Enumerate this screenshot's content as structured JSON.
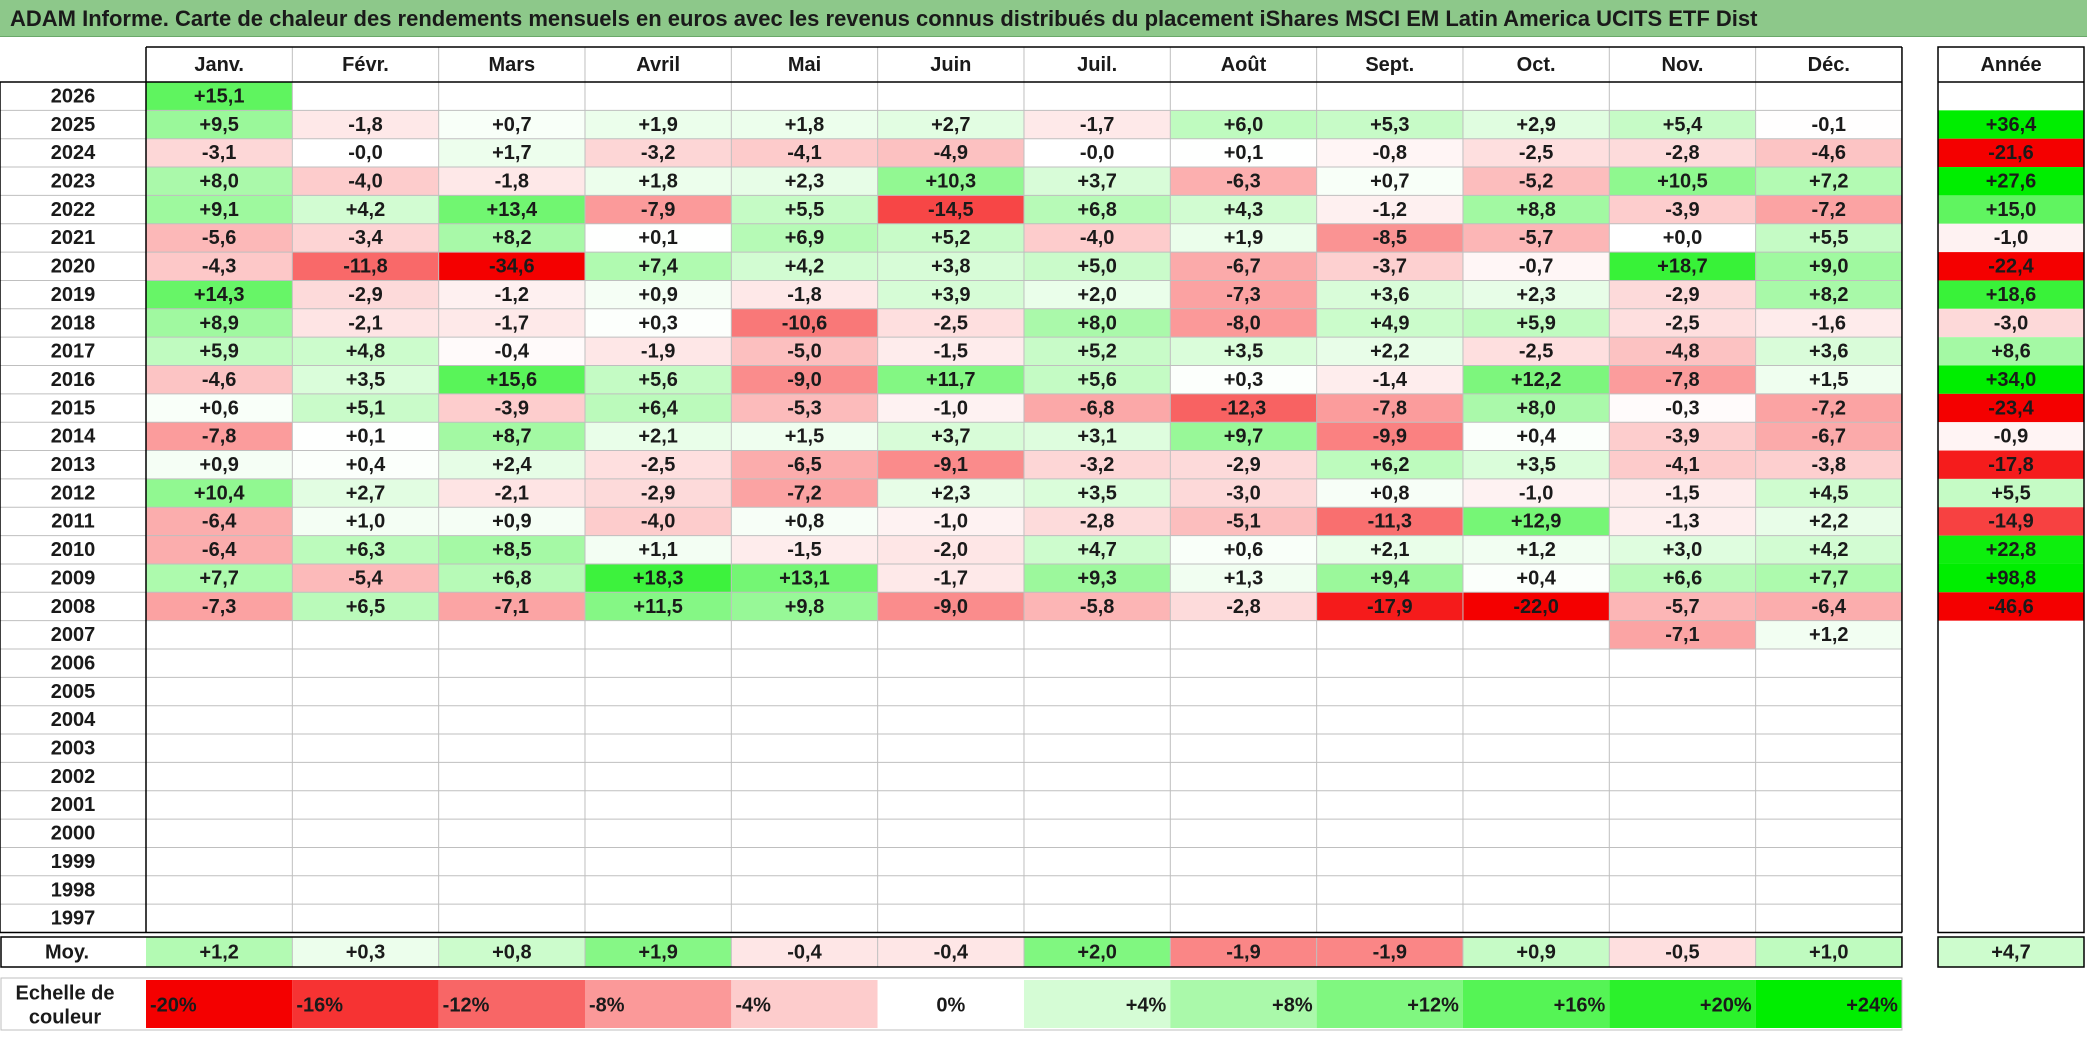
{
  "title": "ADAM Informe. Carte de chaleur des rendements mensuels en euros avec les revenus connus distribués du placement iShares MSCI EM Latin America UCITS ETF Dist",
  "chart_data": {
    "type": "heatmap",
    "months": [
      "Janv.",
      "Févr.",
      "Mars",
      "Avril",
      "Mai",
      "Juin",
      "Juil.",
      "Août",
      "Sept.",
      "Oct.",
      "Nov.",
      "Déc."
    ],
    "year_header": "Année",
    "rows": [
      {
        "year": "2026",
        "months": [
          "+15,1",
          "",
          "",
          "",
          "",
          "",
          "",
          "",
          "",
          "",
          "",
          ""
        ],
        "annual": ""
      },
      {
        "year": "2025",
        "months": [
          "+9,5",
          "-1,8",
          "+0,7",
          "+1,9",
          "+1,8",
          "+2,7",
          "-1,7",
          "+6,0",
          "+5,3",
          "+2,9",
          "+5,4",
          "-0,1"
        ],
        "annual": "+36,4"
      },
      {
        "year": "2024",
        "months": [
          "-3,1",
          "-0,0",
          "+1,7",
          "-3,2",
          "-4,1",
          "-4,9",
          "-0,0",
          "+0,1",
          "-0,8",
          "-2,5",
          "-2,8",
          "-4,6"
        ],
        "annual": "-21,6"
      },
      {
        "year": "2023",
        "months": [
          "+8,0",
          "-4,0",
          "-1,8",
          "+1,8",
          "+2,3",
          "+10,3",
          "+3,7",
          "-6,3",
          "+0,7",
          "-5,2",
          "+10,5",
          "+7,2"
        ],
        "annual": "+27,6"
      },
      {
        "year": "2022",
        "months": [
          "+9,1",
          "+4,2",
          "+13,4",
          "-7,9",
          "+5,5",
          "-14,5",
          "+6,8",
          "+4,3",
          "-1,2",
          "+8,8",
          "-3,9",
          "-7,2"
        ],
        "annual": "+15,0"
      },
      {
        "year": "2021",
        "months": [
          "-5,6",
          "-3,4",
          "+8,2",
          "+0,1",
          "+6,9",
          "+5,2",
          "-4,0",
          "+1,9",
          "-8,5",
          "-5,7",
          "+0,0",
          "+5,5"
        ],
        "annual": "-1,0"
      },
      {
        "year": "2020",
        "months": [
          "-4,3",
          "-11,8",
          "-34,6",
          "+7,4",
          "+4,2",
          "+3,8",
          "+5,0",
          "-6,7",
          "-3,7",
          "-0,7",
          "+18,7",
          "+9,0"
        ],
        "annual": "-22,4"
      },
      {
        "year": "2019",
        "months": [
          "+14,3",
          "-2,9",
          "-1,2",
          "+0,9",
          "-1,8",
          "+3,9",
          "+2,0",
          "-7,3",
          "+3,6",
          "+2,3",
          "-2,9",
          "+8,2"
        ],
        "annual": "+18,6"
      },
      {
        "year": "2018",
        "months": [
          "+8,9",
          "-2,1",
          "-1,7",
          "+0,3",
          "-10,6",
          "-2,5",
          "+8,0",
          "-8,0",
          "+4,9",
          "+5,9",
          "-2,5",
          "-1,6"
        ],
        "annual": "-3,0"
      },
      {
        "year": "2017",
        "months": [
          "+5,9",
          "+4,8",
          "-0,4",
          "-1,9",
          "-5,0",
          "-1,5",
          "+5,2",
          "+3,5",
          "+2,2",
          "-2,5",
          "-4,8",
          "+3,6"
        ],
        "annual": "+8,6"
      },
      {
        "year": "2016",
        "months": [
          "-4,6",
          "+3,5",
          "+15,6",
          "+5,6",
          "-9,0",
          "+11,7",
          "+5,6",
          "+0,3",
          "-1,4",
          "+12,2",
          "-7,8",
          "+1,5"
        ],
        "annual": "+34,0"
      },
      {
        "year": "2015",
        "months": [
          "+0,6",
          "+5,1",
          "-3,9",
          "+6,4",
          "-5,3",
          "-1,0",
          "-6,8",
          "-12,3",
          "-7,8",
          "+8,0",
          "-0,3",
          "-7,2"
        ],
        "annual": "-23,4"
      },
      {
        "year": "2014",
        "months": [
          "-7,8",
          "+0,1",
          "+8,7",
          "+2,1",
          "+1,5",
          "+3,7",
          "+3,1",
          "+9,7",
          "-9,9",
          "+0,4",
          "-3,9",
          "-6,7"
        ],
        "annual": "-0,9"
      },
      {
        "year": "2013",
        "months": [
          "+0,9",
          "+0,4",
          "+2,4",
          "-2,5",
          "-6,5",
          "-9,1",
          "-3,2",
          "-2,9",
          "+6,2",
          "+3,5",
          "-4,1",
          "-3,8"
        ],
        "annual": "-17,8"
      },
      {
        "year": "2012",
        "months": [
          "+10,4",
          "+2,7",
          "-2,1",
          "-2,9",
          "-7,2",
          "+2,3",
          "+3,5",
          "-3,0",
          "+0,8",
          "-1,0",
          "-1,5",
          "+4,5"
        ],
        "annual": "+5,5"
      },
      {
        "year": "2011",
        "months": [
          "-6,4",
          "+1,0",
          "+0,9",
          "-4,0",
          "+0,8",
          "-1,0",
          "-2,8",
          "-5,1",
          "-11,3",
          "+12,9",
          "-1,3",
          "+2,2"
        ],
        "annual": "-14,9"
      },
      {
        "year": "2010",
        "months": [
          "-6,4",
          "+6,3",
          "+8,5",
          "+1,1",
          "-1,5",
          "-2,0",
          "+4,7",
          "+0,6",
          "+2,1",
          "+1,2",
          "+3,0",
          "+4,2"
        ],
        "annual": "+22,8"
      },
      {
        "year": "2009",
        "months": [
          "+7,7",
          "-5,4",
          "+6,8",
          "+18,3",
          "+13,1",
          "-1,7",
          "+9,3",
          "+1,3",
          "+9,4",
          "+0,4",
          "+6,6",
          "+7,7"
        ],
        "annual": "+98,8"
      },
      {
        "year": "2008",
        "months": [
          "-7,3",
          "+6,5",
          "-7,1",
          "+11,5",
          "+9,8",
          "-9,0",
          "-5,8",
          "-2,8",
          "-17,9",
          "-22,0",
          "-5,7",
          "-6,4"
        ],
        "annual": "-46,6"
      },
      {
        "year": "2007",
        "months": [
          "",
          "",
          "",
          "",
          "",
          "",
          "",
          "",
          "",
          "",
          "-7,1",
          "+1,2"
        ],
        "annual": ""
      },
      {
        "year": "2006",
        "months": [
          "",
          "",
          "",
          "",
          "",
          "",
          "",
          "",
          "",
          "",
          "",
          ""
        ],
        "annual": ""
      },
      {
        "year": "2005",
        "months": [
          "",
          "",
          "",
          "",
          "",
          "",
          "",
          "",
          "",
          "",
          "",
          ""
        ],
        "annual": ""
      },
      {
        "year": "2004",
        "months": [
          "",
          "",
          "",
          "",
          "",
          "",
          "",
          "",
          "",
          "",
          "",
          ""
        ],
        "annual": ""
      },
      {
        "year": "2003",
        "months": [
          "",
          "",
          "",
          "",
          "",
          "",
          "",
          "",
          "",
          "",
          "",
          ""
        ],
        "annual": ""
      },
      {
        "year": "2002",
        "months": [
          "",
          "",
          "",
          "",
          "",
          "",
          "",
          "",
          "",
          "",
          "",
          ""
        ],
        "annual": ""
      },
      {
        "year": "2001",
        "months": [
          "",
          "",
          "",
          "",
          "",
          "",
          "",
          "",
          "",
          "",
          "",
          ""
        ],
        "annual": ""
      },
      {
        "year": "2000",
        "months": [
          "",
          "",
          "",
          "",
          "",
          "",
          "",
          "",
          "",
          "",
          "",
          ""
        ],
        "annual": ""
      },
      {
        "year": "1999",
        "months": [
          "",
          "",
          "",
          "",
          "",
          "",
          "",
          "",
          "",
          "",
          "",
          ""
        ],
        "annual": ""
      },
      {
        "year": "1998",
        "months": [
          "",
          "",
          "",
          "",
          "",
          "",
          "",
          "",
          "",
          "",
          "",
          ""
        ],
        "annual": ""
      },
      {
        "year": "1997",
        "months": [
          "",
          "",
          "",
          "",
          "",
          "",
          "",
          "",
          "",
          "",
          "",
          ""
        ],
        "annual": ""
      }
    ],
    "average": {
      "label": "Moy.",
      "months": [
        "+1,2",
        "+0,3",
        "+0,8",
        "+1,9",
        "-0,4",
        "-0,4",
        "+2,0",
        "-1,9",
        "-1,9",
        "+0,9",
        "-0,5",
        "+1,0"
      ],
      "annual": "+4,7"
    },
    "scale": {
      "label_line1": "Echelle de",
      "label_line2": "couleur",
      "steps": [
        {
          "label": "-20%",
          "value": -20
        },
        {
          "label": "-16%",
          "value": -16
        },
        {
          "label": "-12%",
          "value": -12
        },
        {
          "label": "-8%",
          "value": -8
        },
        {
          "label": "-4%",
          "value": -4
        },
        {
          "label": "0%",
          "value": 0
        },
        {
          "label": "+4%",
          "value": 4
        },
        {
          "label": "+8%",
          "value": 8
        },
        {
          "label": "+12%",
          "value": 12
        },
        {
          "label": "+16%",
          "value": 16
        },
        {
          "label": "+20%",
          "value": 20
        },
        {
          "label": "+24%",
          "value": 24
        }
      ]
    },
    "colors": {
      "negative_max": "#f40000",
      "neutral": "#ffffff",
      "positive_max": "#00ee00",
      "title_bar": "#8dc88a",
      "grid": "#bfbfbf",
      "border": "#000000"
    }
  }
}
